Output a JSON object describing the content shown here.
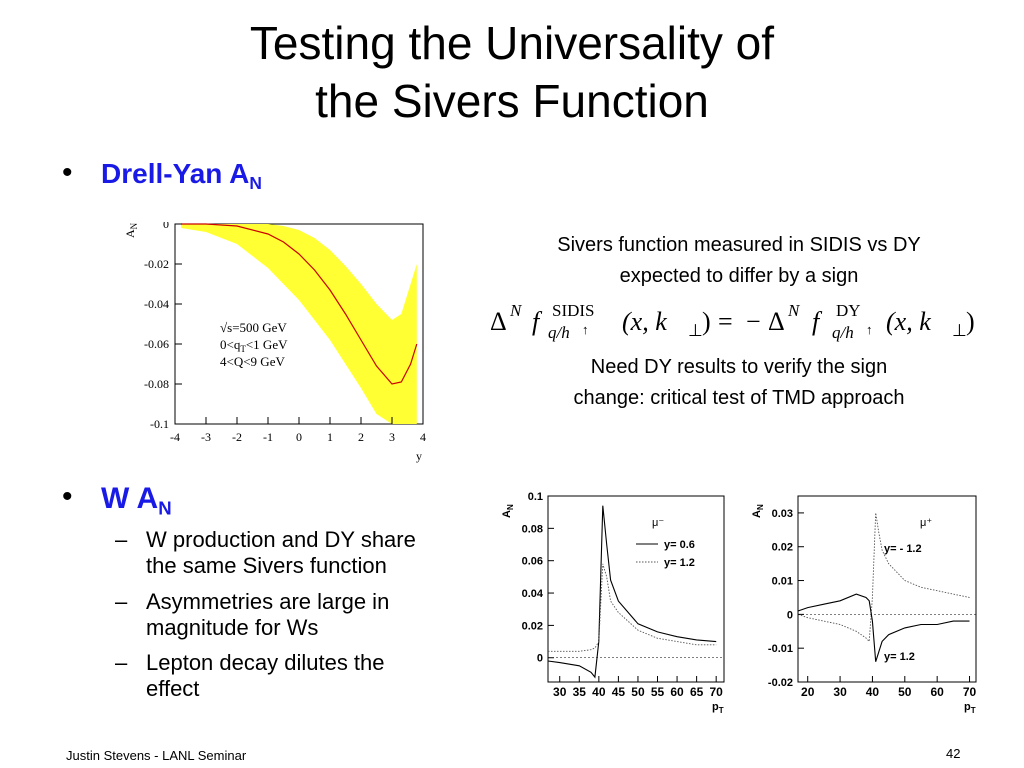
{
  "title": {
    "line1": "Testing the Universality of",
    "line2": "the Sivers Function"
  },
  "bullet_dy": {
    "text": "Drell-Yan  A",
    "sub": "N"
  },
  "bullet_w": {
    "text": "W  A",
    "sub": "N"
  },
  "sub_bullets": [
    {
      "dash": "–",
      "line1": "W production and DY share",
      "line2": "the same Sivers function"
    },
    {
      "dash": "–",
      "line1": "Asymmetries are large in",
      "line2": "magnitude for Ws"
    },
    {
      "dash": "–",
      "line1": "Lepton decay dilutes the",
      "line2": "effect"
    }
  ],
  "caption1": {
    "line1": "Sivers function measured in SIDIS vs DY",
    "line2": "expected to differ by a sign"
  },
  "caption2": {
    "line1": "Need DY results to verify the sign",
    "line2": "change: critical test of TMD approach"
  },
  "formula": {
    "delta": "Δ",
    "N": "N",
    "f": "f",
    "sidis": "SIDIS",
    "dy": "DY",
    "qh": "q/h",
    "arrow": "↑",
    "args": "(x, k",
    "perp": "⊥",
    "close": ")",
    "equals": "=",
    "minus": "−"
  },
  "footer": {
    "author": "Justin Stevens - LANL Seminar",
    "page": "42"
  },
  "chart_data": [
    {
      "type": "line",
      "title": "",
      "xlabel": "y",
      "ylabel": "A",
      "ylabel_sub": "N",
      "xlim": [
        -4,
        4
      ],
      "ylim": [
        -0.1,
        0
      ],
      "xticks": [
        "-4",
        "-3",
        "-2",
        "-1",
        "0",
        "1",
        "2",
        "3",
        "4"
      ],
      "yticks": [
        "0",
        "-0.02",
        "-0.04",
        "-0.06",
        "-0.08",
        "-0.1"
      ],
      "annotations": [
        "√s=500 GeV",
        "0<q",
        "T",
        "<1 GeV",
        "4<Q<9 GeV"
      ],
      "band_color": "#ffff33",
      "line_color": "#cc0000",
      "x": [
        -3.8,
        -3,
        -2,
        -1,
        -0.5,
        0,
        0.5,
        1,
        1.5,
        2,
        2.5,
        3,
        3.3,
        3.6,
        3.8
      ],
      "central": [
        0,
        0,
        -0.001,
        -0.005,
        -0.009,
        -0.015,
        -0.023,
        -0.033,
        -0.045,
        -0.058,
        -0.071,
        -0.08,
        -0.079,
        -0.07,
        -0.06
      ],
      "band_upper": [
        0,
        0,
        0,
        0,
        -0.001,
        -0.003,
        -0.007,
        -0.013,
        -0.021,
        -0.03,
        -0.04,
        -0.048,
        -0.045,
        -0.03,
        -0.02
      ],
      "band_lower": [
        -0.002,
        -0.004,
        -0.01,
        -0.022,
        -0.03,
        -0.038,
        -0.048,
        -0.058,
        -0.07,
        -0.082,
        -0.095,
        -0.1,
        -0.1,
        -0.1,
        -0.1
      ]
    },
    {
      "type": "line",
      "title": "",
      "xlabel": "p",
      "xlabel_sub": "T",
      "ylabel": "A",
      "ylabel_sub": "N",
      "label": "μ⁻",
      "xlim": [
        27,
        72
      ],
      "ylim": [
        -0.015,
        0.1
      ],
      "xticks": [
        "30",
        "35",
        "40",
        "45",
        "50",
        "55",
        "60",
        "65",
        "70"
      ],
      "yticks": [
        "0.1",
        "0.08",
        "0.06",
        "0.04",
        "0.02",
        "0"
      ],
      "series": [
        {
          "name": "y= 0.6",
          "style": "solid",
          "x": [
            27,
            30,
            35,
            38,
            39,
            40,
            41,
            42,
            43,
            45,
            50,
            55,
            60,
            65,
            70
          ],
          "y": [
            -0.002,
            -0.003,
            -0.005,
            -0.009,
            -0.012,
            0.01,
            0.094,
            0.07,
            0.048,
            0.035,
            0.021,
            0.016,
            0.013,
            0.011,
            0.01
          ]
        },
        {
          "name": "y= 1.2",
          "style": "dotted",
          "x": [
            27,
            30,
            35,
            38,
            39,
            40,
            41,
            42,
            43,
            45,
            50,
            55,
            60,
            65,
            70
          ],
          "y": [
            0.004,
            0.004,
            0.004,
            0.005,
            0.006,
            0.01,
            0.058,
            0.05,
            0.035,
            0.028,
            0.017,
            0.012,
            0.01,
            0.008,
            0.008
          ]
        }
      ]
    },
    {
      "type": "line",
      "title": "",
      "xlabel": "p",
      "xlabel_sub": "T",
      "ylabel": "A",
      "ylabel_sub": "N",
      "label": "μ⁺",
      "xlim": [
        17,
        72
      ],
      "ylim": [
        -0.02,
        0.035
      ],
      "xticks": [
        "20",
        "30",
        "40",
        "50",
        "60",
        "70"
      ],
      "yticks": [
        "0.03",
        "0.02",
        "0.01",
        "0",
        "-0.01",
        "-0.02"
      ],
      "series": [
        {
          "name": "y= - 1.2",
          "style": "dotted",
          "x": [
            17,
            20,
            25,
            30,
            35,
            38,
            39,
            40,
            41,
            42,
            43,
            45,
            50,
            55,
            60,
            65,
            70
          ],
          "y": [
            0,
            -0.001,
            -0.002,
            -0.003,
            -0.005,
            -0.007,
            -0.008,
            0.005,
            0.03,
            0.024,
            0.019,
            0.015,
            0.01,
            0.008,
            0.007,
            0.006,
            0.005
          ]
        },
        {
          "name": "y= 1.2",
          "style": "solid",
          "x": [
            17,
            20,
            25,
            30,
            35,
            38,
            39,
            40,
            41,
            42,
            43,
            45,
            50,
            55,
            60,
            65,
            70
          ],
          "y": [
            0.001,
            0.002,
            0.003,
            0.004,
            0.006,
            0.005,
            0.004,
            -0.002,
            -0.014,
            -0.011,
            -0.008,
            -0.006,
            -0.004,
            -0.003,
            -0.003,
            -0.002,
            -0.002
          ]
        }
      ]
    }
  ]
}
